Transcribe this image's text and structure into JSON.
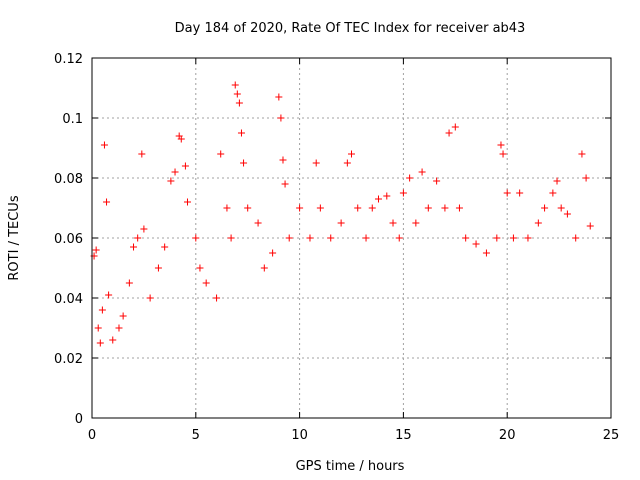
{
  "chart_data": {
    "type": "scatter",
    "title": "Day 184 of 2020, Rate Of TEC Index for receiver ab43",
    "xlabel": "GPS time / hours",
    "ylabel": "ROTI / TECUs",
    "xlim": [
      0,
      25
    ],
    "ylim": [
      0,
      0.12
    ],
    "x_ticks": [
      0,
      5,
      10,
      15,
      20,
      25
    ],
    "y_ticks": [
      0,
      0.02,
      0.04,
      0.06,
      0.08,
      0.1,
      0.12
    ],
    "x_tick_labels": [
      "0",
      "5",
      "10",
      "15",
      "20",
      "25"
    ],
    "y_tick_labels": [
      "0",
      "0.02",
      "0.04",
      "0.06",
      "0.08",
      "0.1",
      "0.12"
    ],
    "grid": true,
    "legend": "none",
    "marker": "+",
    "color": "#ff0000",
    "series": [
      {
        "points": [
          [
            0.1,
            0.054
          ],
          [
            0.2,
            0.056
          ],
          [
            0.3,
            0.03
          ],
          [
            0.4,
            0.025
          ],
          [
            0.5,
            0.036
          ],
          [
            0.6,
            0.091
          ],
          [
            0.7,
            0.072
          ],
          [
            0.8,
            0.041
          ],
          [
            1.0,
            0.026
          ],
          [
            1.3,
            0.03
          ],
          [
            1.5,
            0.034
          ],
          [
            1.8,
            0.045
          ],
          [
            2.0,
            0.057
          ],
          [
            2.2,
            0.06
          ],
          [
            2.4,
            0.088
          ],
          [
            2.5,
            0.063
          ],
          [
            2.8,
            0.04
          ],
          [
            3.2,
            0.05
          ],
          [
            3.5,
            0.057
          ],
          [
            3.8,
            0.079
          ],
          [
            4.0,
            0.082
          ],
          [
            4.2,
            0.094
          ],
          [
            4.3,
            0.093
          ],
          [
            4.5,
            0.084
          ],
          [
            4.6,
            0.072
          ],
          [
            5.0,
            0.06
          ],
          [
            5.2,
            0.05
          ],
          [
            5.5,
            0.045
          ],
          [
            6.0,
            0.04
          ],
          [
            6.2,
            0.088
          ],
          [
            6.5,
            0.07
          ],
          [
            6.7,
            0.06
          ],
          [
            6.9,
            0.111
          ],
          [
            7.0,
            0.108
          ],
          [
            7.1,
            0.105
          ],
          [
            7.2,
            0.095
          ],
          [
            7.3,
            0.085
          ],
          [
            7.5,
            0.07
          ],
          [
            8.0,
            0.065
          ],
          [
            8.3,
            0.05
          ],
          [
            8.7,
            0.055
          ],
          [
            9.0,
            0.107
          ],
          [
            9.1,
            0.1
          ],
          [
            9.2,
            0.086
          ],
          [
            9.3,
            0.078
          ],
          [
            9.5,
            0.06
          ],
          [
            10.0,
            0.07
          ],
          [
            10.5,
            0.06
          ],
          [
            10.8,
            0.085
          ],
          [
            11.0,
            0.07
          ],
          [
            11.5,
            0.06
          ],
          [
            12.0,
            0.065
          ],
          [
            12.3,
            0.085
          ],
          [
            12.5,
            0.088
          ],
          [
            12.8,
            0.07
          ],
          [
            13.2,
            0.06
          ],
          [
            13.5,
            0.07
          ],
          [
            13.8,
            0.073
          ],
          [
            14.2,
            0.074
          ],
          [
            14.5,
            0.065
          ],
          [
            14.8,
            0.06
          ],
          [
            15.0,
            0.075
          ],
          [
            15.3,
            0.08
          ],
          [
            15.6,
            0.065
          ],
          [
            15.9,
            0.082
          ],
          [
            16.2,
            0.07
          ],
          [
            16.6,
            0.079
          ],
          [
            17.0,
            0.07
          ],
          [
            17.2,
            0.095
          ],
          [
            17.5,
            0.097
          ],
          [
            17.7,
            0.07
          ],
          [
            18.0,
            0.06
          ],
          [
            18.5,
            0.058
          ],
          [
            19.0,
            0.055
          ],
          [
            19.5,
            0.06
          ],
          [
            19.7,
            0.091
          ],
          [
            19.8,
            0.088
          ],
          [
            20.0,
            0.075
          ],
          [
            20.3,
            0.06
          ],
          [
            20.6,
            0.075
          ],
          [
            21.0,
            0.06
          ],
          [
            21.5,
            0.065
          ],
          [
            21.8,
            0.07
          ],
          [
            22.2,
            0.075
          ],
          [
            22.4,
            0.079
          ],
          [
            22.6,
            0.07
          ],
          [
            22.9,
            0.068
          ],
          [
            23.3,
            0.06
          ],
          [
            23.6,
            0.088
          ],
          [
            23.8,
            0.08
          ],
          [
            24.0,
            0.064
          ]
        ]
      }
    ]
  }
}
